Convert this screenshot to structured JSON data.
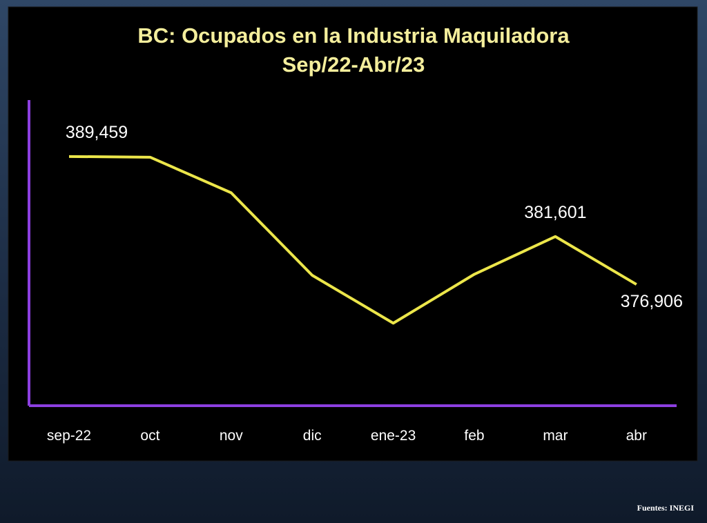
{
  "chart_data": {
    "type": "line",
    "title": "BC: Ocupados en la Industria Maquiladora",
    "subtitle": "Sep/22-Abr/23",
    "categories": [
      "sep-22",
      "oct",
      "nov",
      "dic",
      "ene-23",
      "feb",
      "mar",
      "abr"
    ],
    "values": [
      389459,
      389390,
      385900,
      377800,
      373100,
      377900,
      381601,
      376906
    ],
    "value_labels": [
      "389,459",
      null,
      null,
      null,
      null,
      null,
      "381,601",
      "376,906"
    ],
    "color": "#ece64a",
    "axis_color": "#8c3fe0",
    "ylim": [
      365000,
      395000
    ],
    "source": "Fuentes: INEGI"
  }
}
